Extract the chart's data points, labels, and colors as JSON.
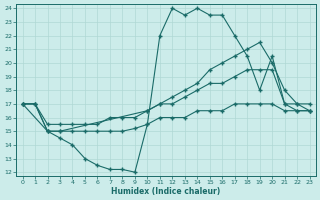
{
  "xlabel": "Humidex (Indice chaleur)",
  "bg_color": "#ccecea",
  "grid_color": "#b0d8d5",
  "line_color": "#1a6b68",
  "xlim": [
    -0.5,
    23.5
  ],
  "ylim": [
    11.7,
    24.3
  ],
  "xticks": [
    0,
    1,
    2,
    3,
    4,
    5,
    6,
    7,
    8,
    9,
    10,
    11,
    12,
    13,
    14,
    15,
    16,
    17,
    18,
    19,
    20,
    21,
    22,
    23
  ],
  "yticks": [
    12,
    13,
    14,
    15,
    16,
    17,
    18,
    19,
    20,
    21,
    22,
    23,
    24
  ],
  "line1_x": [
    0,
    1,
    2,
    3,
    4,
    5,
    6,
    7,
    8,
    9,
    10,
    11,
    12,
    13,
    14,
    15,
    16,
    17,
    18,
    19,
    20,
    21,
    22,
    23
  ],
  "line1_y": [
    17,
    17,
    15,
    14.5,
    14,
    13,
    12.5,
    12.2,
    12.2,
    12,
    15.5,
    22,
    24,
    23.5,
    24,
    23.5,
    23.5,
    22,
    20.5,
    18,
    20.5,
    17,
    16.5,
    16.5
  ],
  "line2_x": [
    0,
    2,
    3,
    10,
    11,
    12,
    13,
    14,
    15,
    16,
    17,
    18,
    19,
    20,
    21,
    22,
    23
  ],
  "line2_y": [
    17,
    15,
    15,
    16.5,
    17,
    17.5,
    18,
    18.5,
    19.5,
    20,
    20.5,
    21,
    21.5,
    20,
    18,
    17,
    16.5
  ],
  "line3_x": [
    0,
    1,
    2,
    3,
    4,
    5,
    6,
    7,
    8,
    9,
    10,
    11,
    12,
    13,
    14,
    15,
    16,
    17,
    18,
    19,
    20,
    21,
    22,
    23
  ],
  "line3_y": [
    17,
    17,
    15.5,
    15.5,
    15.5,
    15.5,
    15.5,
    16,
    16,
    16,
    16.5,
    17,
    17,
    17.5,
    18,
    18.5,
    18.5,
    19,
    19.5,
    19.5,
    19.5,
    17,
    17,
    17
  ],
  "line4_x": [
    0,
    1,
    2,
    3,
    4,
    5,
    6,
    7,
    8,
    9,
    10,
    11,
    12,
    13,
    14,
    15,
    16,
    17,
    18,
    19,
    20,
    21,
    22,
    23
  ],
  "line4_y": [
    17,
    17,
    15,
    15,
    15,
    15,
    15,
    15,
    15,
    15.2,
    15.5,
    16,
    16,
    16,
    16.5,
    16.5,
    16.5,
    17,
    17,
    17,
    17,
    16.5,
    16.5,
    16.5
  ]
}
